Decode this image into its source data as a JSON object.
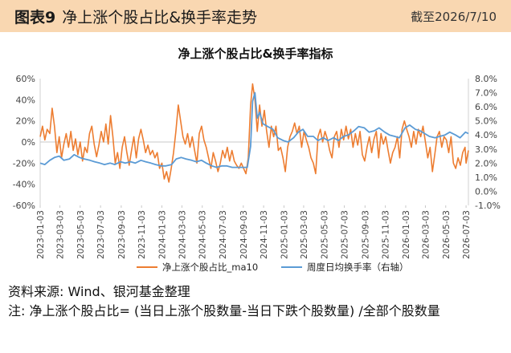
{
  "header": {
    "label": "图表9",
    "title": "净上涨个股占比&换手率走势",
    "date": "截至2026/7/10"
  },
  "source": "资料来源: Wind、银河基金整理",
  "note": "注: 净上涨个股占比= (当日上涨个股数量-当日下跌个股数量) /全部个股数量",
  "colors": {
    "header_bg": "#f9d7b1",
    "series_orange": "#ed7d31",
    "series_blue": "#5b9bd5"
  },
  "chart_data": {
    "type": "line",
    "title": "净上涨个股占比&换手率指标",
    "x_start": "2023-01-03",
    "x_end": "2026-07-10",
    "x_ticks": [
      "2023-01-03",
      "2023-03-03",
      "2023-05-03",
      "2023-07-03",
      "2023-09-03",
      "2023-11-03",
      "2024-01-03",
      "2024-03-03",
      "2024-05-03",
      "2024-07-03",
      "2024-09-03",
      "2024-11-03",
      "2025-01-03",
      "2025-03-03",
      "2025-05-03",
      "2025-07-03",
      "2025-09-03",
      "2025-11-03",
      "2026-01-03",
      "2026-03-03",
      "2026-05-03",
      "2026-07-03"
    ],
    "y_left": {
      "ylim": [
        -60,
        60
      ],
      "ticks": [
        "60%",
        "40%",
        "20%",
        "0%",
        "-20%",
        "-40%",
        "-60%"
      ]
    },
    "y_right": {
      "ylim": [
        -1.0,
        8.0
      ],
      "ticks": [
        "8.0%",
        "7.0%",
        "6.0%",
        "5.0%",
        "4.0%",
        "3.0%",
        "2.0%",
        "1.0%",
        "0.0%",
        "-1.0%"
      ]
    },
    "legend": "bottom",
    "series": [
      {
        "name": "净上涨个股占比_ma10",
        "axis": "left",
        "color": "#ed7d31",
        "points": [
          [
            "2023-01-03",
            5
          ],
          [
            "2023-01-10",
            15
          ],
          [
            "2023-01-17",
            2
          ],
          [
            "2023-01-24",
            12
          ],
          [
            "2023-02-01",
            8
          ],
          [
            "2023-02-08",
            32
          ],
          [
            "2023-02-15",
            15
          ],
          [
            "2023-02-22",
            -10
          ],
          [
            "2023-03-01",
            5
          ],
          [
            "2023-03-08",
            -15
          ],
          [
            "2023-03-15",
            -2
          ],
          [
            "2023-03-22",
            8
          ],
          [
            "2023-03-29",
            -5
          ],
          [
            "2023-04-05",
            10
          ],
          [
            "2023-04-12",
            -8
          ],
          [
            "2023-04-19",
            3
          ],
          [
            "2023-04-26",
            -12
          ],
          [
            "2023-05-03",
            0
          ],
          [
            "2023-05-10",
            -18
          ],
          [
            "2023-05-17",
            -5
          ],
          [
            "2023-05-24",
            -10
          ],
          [
            "2023-05-31",
            8
          ],
          [
            "2023-06-07",
            15
          ],
          [
            "2023-06-14",
            -2
          ],
          [
            "2023-06-21",
            -14
          ],
          [
            "2023-06-28",
            -3
          ],
          [
            "2023-07-05",
            10
          ],
          [
            "2023-07-12",
            0
          ],
          [
            "2023-07-19",
            17
          ],
          [
            "2023-07-26",
            -2
          ],
          [
            "2023-08-02",
            25
          ],
          [
            "2023-08-09",
            5
          ],
          [
            "2023-08-16",
            -20
          ],
          [
            "2023-08-23",
            -10
          ],
          [
            "2023-08-30",
            -25
          ],
          [
            "2023-09-06",
            -5
          ],
          [
            "2023-09-13",
            5
          ],
          [
            "2023-09-20",
            -10
          ],
          [
            "2023-09-27",
            -22
          ],
          [
            "2023-10-04",
            -8
          ],
          [
            "2023-10-11",
            5
          ],
          [
            "2023-10-18",
            -15
          ],
          [
            "2023-10-25",
            3
          ],
          [
            "2023-11-01",
            12
          ],
          [
            "2023-11-08",
            2
          ],
          [
            "2023-11-15",
            -10
          ],
          [
            "2023-11-22",
            -3
          ],
          [
            "2023-11-29",
            -12
          ],
          [
            "2023-12-06",
            -8
          ],
          [
            "2023-12-13",
            -15
          ],
          [
            "2023-12-20",
            -10
          ],
          [
            "2023-12-27",
            -25
          ],
          [
            "2024-01-03",
            -20
          ],
          [
            "2024-01-10",
            -35
          ],
          [
            "2024-01-17",
            -28
          ],
          [
            "2024-01-24",
            -38
          ],
          [
            "2024-01-31",
            -25
          ],
          [
            "2024-02-07",
            -10
          ],
          [
            "2024-02-14",
            10
          ],
          [
            "2024-02-21",
            35
          ],
          [
            "2024-02-28",
            20
          ],
          [
            "2024-03-06",
            5
          ],
          [
            "2024-03-13",
            -2
          ],
          [
            "2024-03-20",
            8
          ],
          [
            "2024-03-27",
            -5
          ],
          [
            "2024-04-03",
            5
          ],
          [
            "2024-04-10",
            -8
          ],
          [
            "2024-04-17",
            -20
          ],
          [
            "2024-04-24",
            8
          ],
          [
            "2024-05-01",
            15
          ],
          [
            "2024-05-08",
            2
          ],
          [
            "2024-05-15",
            -5
          ],
          [
            "2024-05-22",
            -15
          ],
          [
            "2024-05-29",
            -25
          ],
          [
            "2024-06-05",
            -10
          ],
          [
            "2024-06-12",
            -18
          ],
          [
            "2024-06-19",
            -28
          ],
          [
            "2024-06-26",
            -20
          ],
          [
            "2024-07-03",
            -8
          ],
          [
            "2024-07-10",
            -15
          ],
          [
            "2024-07-17",
            -5
          ],
          [
            "2024-07-24",
            -18
          ],
          [
            "2024-07-31",
            -8
          ],
          [
            "2024-08-07",
            -18
          ],
          [
            "2024-08-14",
            -22
          ],
          [
            "2024-08-21",
            -25
          ],
          [
            "2024-08-28",
            -20
          ],
          [
            "2024-09-04",
            -25
          ],
          [
            "2024-09-11",
            -30
          ],
          [
            "2024-09-18",
            -15
          ],
          [
            "2024-09-25",
            35
          ],
          [
            "2024-10-01",
            55
          ],
          [
            "2024-10-08",
            40
          ],
          [
            "2024-10-15",
            10
          ],
          [
            "2024-10-22",
            35
          ],
          [
            "2024-10-29",
            15
          ],
          [
            "2024-11-05",
            30
          ],
          [
            "2024-11-12",
            10
          ],
          [
            "2024-11-19",
            -5
          ],
          [
            "2024-11-26",
            15
          ],
          [
            "2024-12-03",
            5
          ],
          [
            "2024-12-10",
            15
          ],
          [
            "2024-12-17",
            -8
          ],
          [
            "2024-12-24",
            -5
          ],
          [
            "2024-12-31",
            -15
          ],
          [
            "2025-01-07",
            -28
          ],
          [
            "2025-01-14",
            -5
          ],
          [
            "2025-01-21",
            5
          ],
          [
            "2025-01-28",
            10
          ],
          [
            "2025-02-04",
            18
          ],
          [
            "2025-02-11",
            8
          ],
          [
            "2025-02-18",
            15
          ],
          [
            "2025-02-25",
            -5
          ],
          [
            "2025-03-04",
            10
          ],
          [
            "2025-03-11",
            2
          ],
          [
            "2025-03-18",
            -5
          ],
          [
            "2025-03-25",
            -15
          ],
          [
            "2025-04-01",
            -20
          ],
          [
            "2025-04-08",
            -30
          ],
          [
            "2025-04-15",
            5
          ],
          [
            "2025-04-22",
            12
          ],
          [
            "2025-04-29",
            0
          ],
          [
            "2025-05-06",
            10
          ],
          [
            "2025-05-13",
            3
          ],
          [
            "2025-05-20",
            -8
          ],
          [
            "2025-05-27",
            -15
          ],
          [
            "2025-06-03",
            5
          ],
          [
            "2025-06-10",
            10
          ],
          [
            "2025-06-17",
            -5
          ],
          [
            "2025-06-24",
            12
          ],
          [
            "2025-07-01",
            2
          ],
          [
            "2025-07-08",
            15
          ],
          [
            "2025-07-15",
            3
          ],
          [
            "2025-07-22",
            12
          ],
          [
            "2025-07-29",
            -5
          ],
          [
            "2025-08-05",
            8
          ],
          [
            "2025-08-12",
            -3
          ],
          [
            "2025-08-19",
            10
          ],
          [
            "2025-08-26",
            -12
          ],
          [
            "2025-09-02",
            -18
          ],
          [
            "2025-09-09",
            -5
          ],
          [
            "2025-09-16",
            5
          ],
          [
            "2025-09-23",
            -10
          ],
          [
            "2025-09-30",
            3
          ],
          [
            "2025-10-07",
            10
          ],
          [
            "2025-10-14",
            -15
          ],
          [
            "2025-10-21",
            8
          ],
          [
            "2025-10-28",
            -2
          ],
          [
            "2025-11-04",
            5
          ],
          [
            "2025-11-11",
            -8
          ],
          [
            "2025-11-18",
            -20
          ],
          [
            "2025-11-25",
            -10
          ],
          [
            "2025-12-02",
            -5
          ],
          [
            "2025-12-09",
            5
          ],
          [
            "2025-12-16",
            -15
          ],
          [
            "2025-12-23",
            12
          ],
          [
            "2025-12-30",
            20
          ],
          [
            "2026-01-06",
            12
          ],
          [
            "2026-01-13",
            5
          ],
          [
            "2026-01-20",
            -5
          ],
          [
            "2026-01-27",
            10
          ],
          [
            "2026-02-03",
            -2
          ],
          [
            "2026-02-10",
            12
          ],
          [
            "2026-02-17",
            5
          ],
          [
            "2026-02-24",
            15
          ],
          [
            "2026-03-03",
            0
          ],
          [
            "2026-03-10",
            -15
          ],
          [
            "2026-03-17",
            -5
          ],
          [
            "2026-03-24",
            -28
          ],
          [
            "2026-03-31",
            -12
          ],
          [
            "2026-04-07",
            5
          ],
          [
            "2026-04-14",
            10
          ],
          [
            "2026-04-21",
            -5
          ],
          [
            "2026-04-28",
            5
          ],
          [
            "2026-05-05",
            2
          ],
          [
            "2026-05-12",
            -10
          ],
          [
            "2026-05-19",
            5
          ],
          [
            "2026-05-26",
            -20
          ],
          [
            "2026-06-02",
            -25
          ],
          [
            "2026-06-09",
            -15
          ],
          [
            "2026-06-16",
            -22
          ],
          [
            "2026-06-23",
            -10
          ],
          [
            "2026-06-30",
            -5
          ],
          [
            "2026-07-03",
            -20
          ],
          [
            "2026-07-10",
            -8
          ]
        ]
      },
      {
        "name": "周度日均换手率（右轴）",
        "axis": "right",
        "color": "#5b9bd5",
        "points": [
          [
            "2023-01-03",
            2.0
          ],
          [
            "2023-01-17",
            1.9
          ],
          [
            "2023-02-01",
            2.2
          ],
          [
            "2023-02-15",
            2.4
          ],
          [
            "2023-03-01",
            2.5
          ],
          [
            "2023-03-15",
            2.2
          ],
          [
            "2023-04-01",
            2.3
          ],
          [
            "2023-04-15",
            2.6
          ],
          [
            "2023-05-01",
            2.4
          ],
          [
            "2023-05-15",
            2.3
          ],
          [
            "2023-06-01",
            2.2
          ],
          [
            "2023-06-15",
            2.1
          ],
          [
            "2023-07-01",
            2.0
          ],
          [
            "2023-07-15",
            1.9
          ],
          [
            "2023-08-01",
            2.0
          ],
          [
            "2023-08-15",
            1.9
          ],
          [
            "2023-09-01",
            2.1
          ],
          [
            "2023-09-15",
            2.0
          ],
          [
            "2023-10-01",
            2.1
          ],
          [
            "2023-10-15",
            2.0
          ],
          [
            "2023-11-01",
            2.2
          ],
          [
            "2023-11-15",
            2.1
          ],
          [
            "2023-12-01",
            2.0
          ],
          [
            "2023-12-15",
            1.9
          ],
          [
            "2024-01-01",
            1.8
          ],
          [
            "2024-01-15",
            1.8
          ],
          [
            "2024-02-01",
            1.9
          ],
          [
            "2024-02-15",
            2.3
          ],
          [
            "2024-03-01",
            2.4
          ],
          [
            "2024-03-15",
            2.3
          ],
          [
            "2024-04-01",
            2.2
          ],
          [
            "2024-04-15",
            2.1
          ],
          [
            "2024-05-01",
            2.2
          ],
          [
            "2024-05-15",
            2.0
          ],
          [
            "2024-06-01",
            1.8
          ],
          [
            "2024-06-15",
            1.7
          ],
          [
            "2024-07-01",
            1.8
          ],
          [
            "2024-07-15",
            1.8
          ],
          [
            "2024-08-01",
            1.7
          ],
          [
            "2024-08-15",
            1.7
          ],
          [
            "2024-09-01",
            1.7
          ],
          [
            "2024-09-15",
            1.7
          ],
          [
            "2024-09-25",
            3.2
          ],
          [
            "2024-10-01",
            6.4
          ],
          [
            "2024-10-08",
            7.0
          ],
          [
            "2024-10-15",
            5.2
          ],
          [
            "2024-10-22",
            5.6
          ],
          [
            "2024-11-01",
            4.8
          ],
          [
            "2024-11-15",
            4.6
          ],
          [
            "2024-12-01",
            4.4
          ],
          [
            "2024-12-15",
            3.8
          ],
          [
            "2025-01-01",
            3.6
          ],
          [
            "2025-01-15",
            3.5
          ],
          [
            "2025-02-01",
            3.8
          ],
          [
            "2025-02-15",
            4.2
          ],
          [
            "2025-03-01",
            4.4
          ],
          [
            "2025-03-15",
            3.9
          ],
          [
            "2025-04-01",
            3.9
          ],
          [
            "2025-04-15",
            3.6
          ],
          [
            "2025-05-01",
            3.8
          ],
          [
            "2025-05-15",
            3.6
          ],
          [
            "2025-06-01",
            3.8
          ],
          [
            "2025-06-15",
            3.6
          ],
          [
            "2025-07-01",
            3.9
          ],
          [
            "2025-07-15",
            4.0
          ],
          [
            "2025-08-01",
            4.3
          ],
          [
            "2025-08-15",
            4.6
          ],
          [
            "2025-09-01",
            4.5
          ],
          [
            "2025-09-15",
            4.2
          ],
          [
            "2025-10-01",
            4.3
          ],
          [
            "2025-10-15",
            4.5
          ],
          [
            "2025-11-01",
            4.2
          ],
          [
            "2025-11-15",
            4.0
          ],
          [
            "2025-12-01",
            3.9
          ],
          [
            "2025-12-15",
            3.8
          ],
          [
            "2026-01-01",
            4.5
          ],
          [
            "2026-01-15",
            4.7
          ],
          [
            "2026-02-01",
            4.4
          ],
          [
            "2026-02-15",
            4.3
          ],
          [
            "2026-03-01",
            4.1
          ],
          [
            "2026-03-15",
            3.9
          ],
          [
            "2026-04-01",
            3.8
          ],
          [
            "2026-04-15",
            3.9
          ],
          [
            "2026-05-01",
            4.0
          ],
          [
            "2026-05-15",
            4.2
          ],
          [
            "2026-06-01",
            4.0
          ],
          [
            "2026-06-15",
            3.8
          ],
          [
            "2026-07-01",
            4.2
          ],
          [
            "2026-07-10",
            4.1
          ]
        ]
      }
    ]
  }
}
